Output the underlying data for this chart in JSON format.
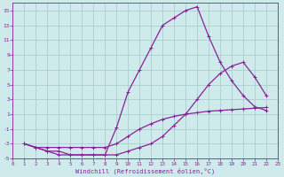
{
  "xlabel": "Windchill (Refroidissement éolien,°C)",
  "bg_color": "#ceeaea",
  "grid_color": "#aacece",
  "line_color": "#882299",
  "xlim": [
    0,
    23
  ],
  "ylim": [
    -5,
    16
  ],
  "xticks": [
    0,
    1,
    2,
    3,
    4,
    5,
    6,
    7,
    8,
    9,
    10,
    11,
    12,
    13,
    14,
    15,
    16,
    17,
    18,
    19,
    20,
    21,
    22,
    23
  ],
  "yticks": [
    -5,
    -3,
    -1,
    1,
    3,
    5,
    7,
    9,
    11,
    13,
    15
  ],
  "line1_x": [
    1,
    2,
    3,
    4,
    5,
    6,
    7,
    8,
    9,
    10,
    11,
    12,
    13,
    14,
    15,
    16,
    17,
    18,
    19,
    20,
    21,
    22
  ],
  "line1_y": [
    -3,
    -3.5,
    -4,
    -4.5,
    -4.5,
    -4.5,
    -4.5,
    -4.5,
    -4.5,
    -4,
    -3.5,
    -3,
    -2,
    -0.5,
    1,
    3,
    5,
    6.5,
    7.5,
    8,
    6,
    3.5
  ],
  "line2_x": [
    1,
    2,
    3,
    4,
    5,
    6,
    7,
    8,
    9,
    10,
    11,
    12,
    13,
    14,
    15,
    16,
    17,
    18,
    19,
    20,
    21,
    22
  ],
  "line2_y": [
    -3,
    -3.5,
    -4,
    -4,
    -4.5,
    -4.5,
    -4.5,
    -4.5,
    -0.8,
    4,
    7,
    10,
    13,
    14,
    15,
    15.5,
    11.5,
    8,
    5.5,
    3.5,
    2,
    1.5
  ],
  "line3_x": [
    1,
    2,
    3,
    4,
    5,
    6,
    7,
    8,
    9,
    10,
    11,
    12,
    13,
    14,
    15,
    16,
    17,
    18,
    19,
    20,
    21,
    22
  ],
  "line3_y": [
    -3,
    -3.5,
    -3.5,
    -3.5,
    -3.5,
    -3.5,
    -3.5,
    -3.5,
    -3,
    -2,
    -1,
    -0.3,
    0.3,
    0.7,
    1.0,
    1.2,
    1.4,
    1.5,
    1.6,
    1.7,
    1.8,
    1.9
  ]
}
